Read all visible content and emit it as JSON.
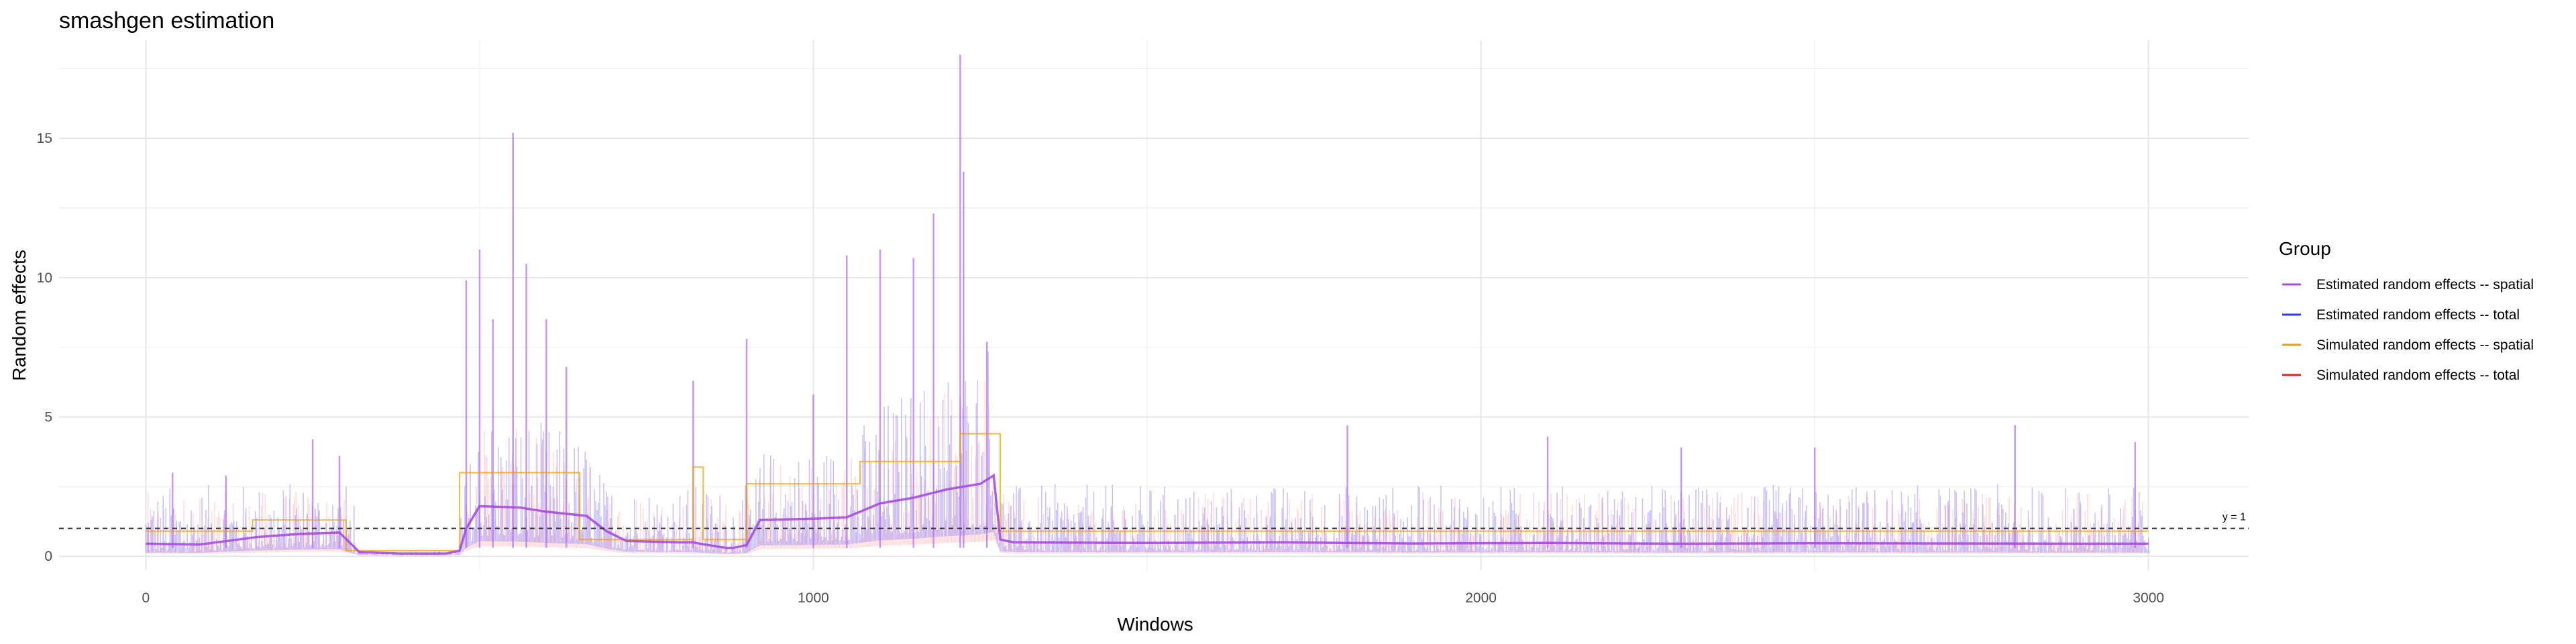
{
  "chart_data": {
    "type": "line",
    "title": "smashgen estimation",
    "xlabel": "Windows",
    "ylabel": "Random effects",
    "xlim": [
      -130,
      3150
    ],
    "ylim": [
      -0.5,
      19
    ],
    "x_ticks": [
      0,
      1000,
      2000,
      3000
    ],
    "y_ticks": [
      0,
      5,
      10,
      15
    ],
    "grid": true,
    "legend_position": "right",
    "legend_title": "Group",
    "reference_line": {
      "y": 1,
      "style": "dashed",
      "label": "y = 1"
    },
    "series": [
      {
        "name": "Estimated random effects -- spatial",
        "color": "#a64ddf",
        "segments": [
          {
            "x": [
              0,
              80,
              170,
              230,
              290,
              320,
              380,
              450,
              470,
              480,
              500,
              560,
              600,
              660,
              690,
              720,
              800,
              820,
              830,
              870,
              880,
              900,
              920,
              1000,
              1050,
              1100,
              1150,
              1200,
              1250,
              1270,
              1280,
              1300,
              1500,
              1700,
              1900,
              2100,
              2300,
              2500,
              2700,
              2900,
              3000
            ],
            "y": [
              0.45,
              0.42,
              0.7,
              0.8,
              0.85,
              0.15,
              0.1,
              0.1,
              0.2,
              1.0,
              1.8,
              1.75,
              1.6,
              1.45,
              0.9,
              0.55,
              0.5,
              0.5,
              0.45,
              0.3,
              0.3,
              0.4,
              1.3,
              1.35,
              1.4,
              1.9,
              2.1,
              2.4,
              2.6,
              2.9,
              0.6,
              0.5,
              0.48,
              0.5,
              0.46,
              0.48,
              0.45,
              0.47,
              0.46,
              0.45,
              0.45
            ]
          }
        ]
      },
      {
        "name": "Estimated random effects -- total",
        "color": "#2f3de0",
        "segments": [
          {
            "x": [
              0,
              1000,
              2000,
              3000
            ],
            "y": [
              0.7,
              0.9,
              0.6,
              0.6
            ]
          }
        ]
      },
      {
        "name": "Simulated random effects -- spatial",
        "color": "#f0a000",
        "segments": [
          {
            "x": [
              0,
              160,
              160,
              300,
              300,
              470,
              470,
              650,
              650,
              820,
              820,
              835,
              835,
              900,
              900,
              1070,
              1070,
              1220,
              1220,
              1280,
              1280,
              3000
            ],
            "y": [
              0.9,
              0.9,
              1.3,
              1.3,
              0.2,
              0.2,
              3.0,
              3.0,
              0.6,
              0.6,
              3.2,
              3.2,
              0.6,
              0.6,
              2.6,
              2.6,
              3.4,
              3.4,
              4.4,
              4.4,
              0.9,
              0.9
            ]
          }
        ]
      },
      {
        "name": "Simulated random effects -- total",
        "color": "#ee1b1b",
        "segments": [
          {
            "x": [
              0,
              1000,
              2000,
              3000
            ],
            "y": [
              0.8,
              1.2,
              0.8,
              0.8
            ]
          }
        ]
      }
    ],
    "spikes": {
      "estimated_color": "#8a79f2",
      "simulated_color": "#ff9a9a",
      "peaks": [
        {
          "x": 40,
          "y": 3.0
        },
        {
          "x": 120,
          "y": 2.9
        },
        {
          "x": 250,
          "y": 4.2
        },
        {
          "x": 290,
          "y": 3.6
        },
        {
          "x": 480,
          "y": 9.9
        },
        {
          "x": 500,
          "y": 11.0
        },
        {
          "x": 520,
          "y": 8.5
        },
        {
          "x": 550,
          "y": 15.2
        },
        {
          "x": 570,
          "y": 10.5
        },
        {
          "x": 600,
          "y": 8.5
        },
        {
          "x": 630,
          "y": 6.8
        },
        {
          "x": 820,
          "y": 6.3
        },
        {
          "x": 900,
          "y": 7.8
        },
        {
          "x": 1000,
          "y": 5.8
        },
        {
          "x": 1050,
          "y": 10.8
        },
        {
          "x": 1100,
          "y": 11.0
        },
        {
          "x": 1150,
          "y": 10.7
        },
        {
          "x": 1180,
          "y": 12.3
        },
        {
          "x": 1220,
          "y": 18.0
        },
        {
          "x": 1225,
          "y": 13.8
        },
        {
          "x": 1260,
          "y": 7.7
        },
        {
          "x": 1800,
          "y": 4.7
        },
        {
          "x": 2100,
          "y": 4.3
        },
        {
          "x": 2300,
          "y": 3.9
        },
        {
          "x": 2500,
          "y": 3.9
        },
        {
          "x": 2800,
          "y": 4.7
        },
        {
          "x": 2980,
          "y": 4.1
        }
      ]
    }
  }
}
